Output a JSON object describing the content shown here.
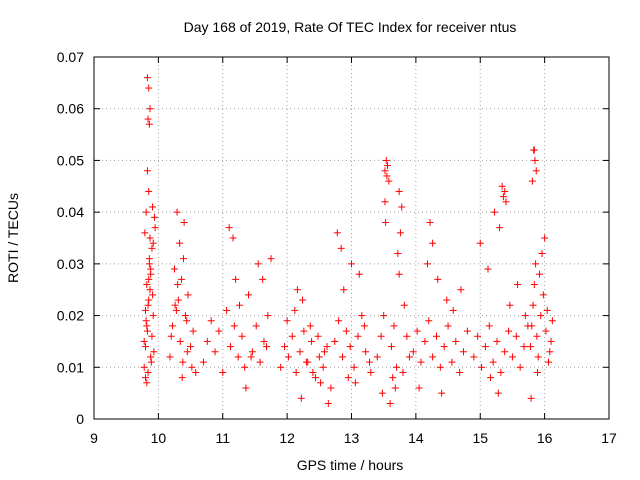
{
  "chart_data": {
    "type": "scatter",
    "title": "Day 168 of 2019, Rate Of TEC Index for receiver ntus",
    "xlabel": "GPS time / hours",
    "ylabel": "ROTI / TECUs",
    "xlim": [
      9,
      17
    ],
    "ylim": [
      0,
      0.07
    ],
    "x_ticks": [
      9,
      10,
      11,
      12,
      13,
      14,
      15,
      16,
      17
    ],
    "y_ticks": [
      0,
      0.01,
      0.02,
      0.03,
      0.04,
      0.05,
      0.06,
      0.07
    ],
    "x_tick_labels": [
      "9",
      "10",
      "11",
      "12",
      "13",
      "14",
      "15",
      "16",
      "17"
    ],
    "y_tick_labels": [
      "0",
      "0.01",
      "0.02",
      "0.03",
      "0.04",
      "0.05",
      "0.06",
      "0.07"
    ],
    "grid": true,
    "marker": "plus",
    "marker_color": "#ff0000",
    "series": [
      {
        "name": "ROTI",
        "color": "#ff0000",
        "x": [
          9.78,
          9.8,
          9.82,
          9.84,
          9.85,
          9.86,
          9.87,
          9.88,
          9.9,
          9.92,
          9.83,
          9.85,
          9.87,
          9.84,
          9.86,
          9.79,
          9.81,
          9.83,
          9.85,
          9.88,
          9.91,
          9.93,
          9.8,
          9.84,
          9.89,
          9.82,
          9.86,
          9.9,
          9.94,
          9.78,
          9.81,
          9.85,
          9.88,
          9.92,
          9.8,
          9.83,
          9.87,
          9.91,
          9.95,
          9.82,
          10.18,
          10.22,
          10.26,
          10.3,
          10.34,
          10.38,
          10.42,
          10.46,
          10.5,
          10.54,
          10.58,
          10.25,
          10.33,
          10.4,
          10.29,
          10.37,
          10.45,
          10.2,
          10.28,
          10.36,
          10.44,
          10.52,
          10.31,
          10.39,
          10.7,
          10.76,
          10.82,
          10.88,
          10.94,
          11.0,
          11.06,
          11.12,
          11.18,
          11.24,
          11.3,
          11.1,
          11.16,
          11.2,
          11.26,
          11.34,
          11.4,
          11.46,
          11.52,
          11.58,
          11.64,
          11.7,
          11.55,
          11.62,
          11.68,
          11.75,
          11.36,
          11.44,
          11.9,
          11.96,
          12.02,
          12.08,
          12.14,
          12.2,
          12.26,
          12.32,
          12.38,
          12.44,
          12.5,
          12.56,
          12.62,
          12.68,
          12.0,
          12.12,
          12.24,
          12.36,
          12.48,
          12.58,
          12.22,
          12.16,
          12.3,
          12.4,
          12.52,
          12.64,
          12.74,
          12.8,
          12.86,
          12.92,
          12.98,
          13.04,
          13.1,
          13.16,
          13.22,
          13.28,
          12.78,
          12.84,
          12.88,
          13.0,
          13.12,
          13.2,
          13.3,
          12.95,
          13.06,
          13.4,
          13.46,
          13.5,
          13.52,
          13.54,
          13.56,
          13.58,
          13.62,
          13.66,
          13.7,
          13.74,
          13.78,
          13.82,
          13.86,
          13.9,
          13.52,
          13.55,
          13.53,
          13.74,
          13.72,
          13.76,
          13.64,
          13.48,
          13.6,
          13.68,
          13.8,
          13.96,
          14.02,
          14.08,
          14.14,
          14.2,
          14.26,
          14.32,
          14.38,
          14.44,
          14.5,
          14.56,
          14.62,
          14.68,
          14.74,
          14.8,
          14.22,
          14.18,
          14.26,
          14.34,
          14.48,
          14.58,
          14.7,
          14.05,
          14.4,
          14.9,
          14.96,
          15.02,
          15.08,
          15.14,
          15.2,
          15.26,
          15.32,
          15.38,
          15.44,
          15.5,
          15.56,
          15.62,
          15.68,
          15.74,
          15.0,
          15.12,
          15.22,
          15.3,
          15.34,
          15.36,
          15.38,
          15.4,
          15.16,
          15.28,
          15.46,
          15.58,
          15.7,
          15.78,
          15.8,
          15.82,
          15.84,
          15.86,
          15.88,
          15.9,
          15.94,
          15.98,
          16.02,
          16.06,
          16.1,
          15.83,
          15.85,
          15.87,
          15.81,
          15.92,
          15.96,
          16.0,
          16.04,
          16.08,
          15.79,
          15.89,
          16.12,
          15.84
        ],
        "y": [
          0.01,
          0.014,
          0.018,
          0.022,
          0.027,
          0.031,
          0.035,
          0.012,
          0.016,
          0.02,
          0.066,
          0.064,
          0.06,
          0.058,
          0.057,
          0.036,
          0.04,
          0.048,
          0.044,
          0.029,
          0.024,
          0.013,
          0.008,
          0.009,
          0.011,
          0.026,
          0.03,
          0.033,
          0.039,
          0.015,
          0.019,
          0.023,
          0.028,
          0.034,
          0.021,
          0.017,
          0.025,
          0.041,
          0.037,
          0.007,
          0.012,
          0.018,
          0.022,
          0.026,
          0.015,
          0.011,
          0.02,
          0.024,
          0.014,
          0.017,
          0.009,
          0.029,
          0.034,
          0.038,
          0.04,
          0.008,
          0.013,
          0.016,
          0.021,
          0.027,
          0.019,
          0.01,
          0.023,
          0.031,
          0.011,
          0.015,
          0.019,
          0.013,
          0.017,
          0.009,
          0.021,
          0.014,
          0.018,
          0.012,
          0.016,
          0.037,
          0.035,
          0.027,
          0.022,
          0.01,
          0.024,
          0.013,
          0.018,
          0.011,
          0.015,
          0.02,
          0.03,
          0.027,
          0.014,
          0.031,
          0.006,
          0.012,
          0.01,
          0.014,
          0.012,
          0.016,
          0.009,
          0.013,
          0.017,
          0.011,
          0.015,
          0.008,
          0.012,
          0.01,
          0.014,
          0.006,
          0.019,
          0.021,
          0.023,
          0.018,
          0.016,
          0.013,
          0.004,
          0.025,
          0.011,
          0.009,
          0.007,
          0.003,
          0.015,
          0.019,
          0.012,
          0.017,
          0.014,
          0.01,
          0.016,
          0.02,
          0.013,
          0.011,
          0.036,
          0.033,
          0.025,
          0.03,
          0.028,
          0.018,
          0.009,
          0.008,
          0.007,
          0.012,
          0.016,
          0.02,
          0.048,
          0.05,
          0.049,
          0.046,
          0.014,
          0.018,
          0.01,
          0.044,
          0.041,
          0.022,
          0.016,
          0.012,
          0.042,
          0.047,
          0.038,
          0.028,
          0.032,
          0.036,
          0.008,
          0.005,
          0.003,
          0.006,
          0.009,
          0.013,
          0.017,
          0.011,
          0.015,
          0.019,
          0.012,
          0.016,
          0.01,
          0.014,
          0.018,
          0.011,
          0.015,
          0.009,
          0.013,
          0.017,
          0.038,
          0.03,
          0.034,
          0.027,
          0.023,
          0.021,
          0.025,
          0.006,
          0.005,
          0.012,
          0.016,
          0.01,
          0.014,
          0.018,
          0.011,
          0.015,
          0.009,
          0.013,
          0.017,
          0.012,
          0.016,
          0.01,
          0.014,
          0.018,
          0.034,
          0.029,
          0.04,
          0.037,
          0.045,
          0.043,
          0.044,
          0.042,
          0.008,
          0.005,
          0.022,
          0.026,
          0.02,
          0.014,
          0.018,
          0.022,
          0.026,
          0.03,
          0.016,
          0.012,
          0.02,
          0.024,
          0.017,
          0.011,
          0.015,
          0.052,
          0.05,
          0.048,
          0.046,
          0.028,
          0.032,
          0.035,
          0.021,
          0.013,
          0.004,
          0.009,
          0.019,
          0.052
        ]
      }
    ]
  }
}
